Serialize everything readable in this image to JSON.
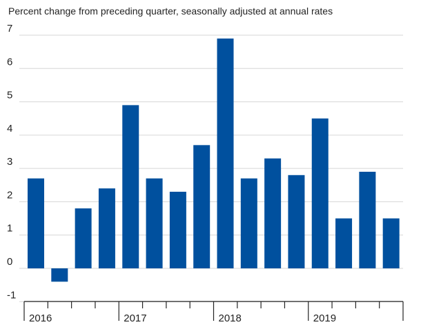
{
  "chart_data": {
    "type": "bar",
    "subtitle": "Percent change from preceding quarter, seasonally adjusted at annual rates",
    "categories": [
      "2016 Q1",
      "2016 Q2",
      "2016 Q3",
      "2016 Q4",
      "2017 Q1",
      "2017 Q2",
      "2017 Q3",
      "2017 Q4",
      "2018 Q1",
      "2018 Q2",
      "2018 Q3",
      "2018 Q4",
      "2019 Q1",
      "2019 Q2",
      "2019 Q3",
      "2019 Q4"
    ],
    "values": [
      2.7,
      -0.4,
      1.8,
      2.4,
      4.9,
      2.7,
      2.3,
      3.7,
      6.9,
      2.7,
      3.3,
      2.8,
      4.5,
      1.5,
      2.9,
      1.5
    ],
    "year_labels": [
      "2016",
      "2017",
      "2018",
      "2019"
    ],
    "y_ticks": [
      7,
      6,
      5,
      4,
      3,
      2,
      1,
      0,
      -1
    ],
    "ylim": [
      -1,
      7
    ],
    "bar_color": "#00509e",
    "grid": true
  }
}
